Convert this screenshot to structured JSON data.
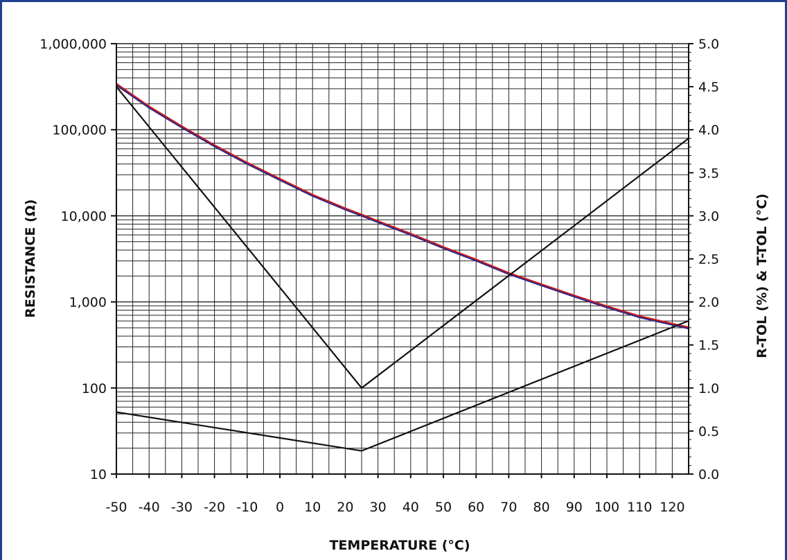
{
  "chart_data": {
    "type": "line",
    "xlabel": "TEMPERATURE (°C)",
    "ylabel": "RESISTANCE (Ω)",
    "y2label": "R-TOL (%)  &  T-TOL (°C)",
    "xlim": [
      -50,
      125
    ],
    "ylim": [
      10,
      1000000
    ],
    "yscale": "log",
    "y2lim": [
      0,
      5
    ],
    "grid": true,
    "x_ticks": [
      -50,
      -40,
      -30,
      -20,
      -10,
      0,
      10,
      20,
      30,
      40,
      50,
      60,
      70,
      80,
      90,
      100,
      110,
      120
    ],
    "x_tick_labels": [
      "-50",
      "-40",
      "-30",
      "-20",
      "-10",
      "0",
      "10",
      "20",
      "30",
      "40",
      "50",
      "60",
      "70",
      "80",
      "90",
      "100",
      "110",
      "120"
    ],
    "y_ticks": [
      10,
      100,
      1000,
      10000,
      100000,
      1000000
    ],
    "y_tick_labels": [
      "10",
      "100",
      "1,000",
      "10,000",
      "100,000",
      "1,000,000"
    ],
    "y2_ticks": [
      0,
      0.5,
      1,
      1.5,
      2,
      2.5,
      3,
      3.5,
      4,
      4.5,
      5
    ],
    "y2_tick_labels": [
      "0.0",
      "0.5",
      "1.0",
      "1.5",
      "2.0",
      "2.5",
      "3.0",
      "3.5",
      "4.0",
      "4.5",
      "5.0"
    ],
    "series": [
      {
        "axis": "left",
        "color": "#2a2a8a",
        "highlight": "#d11a1a",
        "x": [
          -50,
          -40,
          -30,
          -20,
          -10,
          0,
          10,
          20,
          25,
          30,
          40,
          50,
          60,
          70,
          80,
          90,
          100,
          110,
          120,
          125
        ],
        "y": [
          330000,
          180000,
          106000,
          64000,
          40000,
          26000,
          17000,
          11800,
          10000,
          8400,
          6000,
          4200,
          3000,
          2100,
          1550,
          1150,
          860,
          660,
          540,
          490
        ]
      },
      {
        "axis": "right",
        "color": "#111111",
        "x": [
          -50,
          25,
          125
        ],
        "y": [
          4.5,
          1.0,
          3.9
        ]
      },
      {
        "axis": "right",
        "color": "#111111",
        "x": [
          -50,
          25,
          125
        ],
        "y": [
          0.72,
          0.27,
          1.78
        ]
      }
    ]
  }
}
